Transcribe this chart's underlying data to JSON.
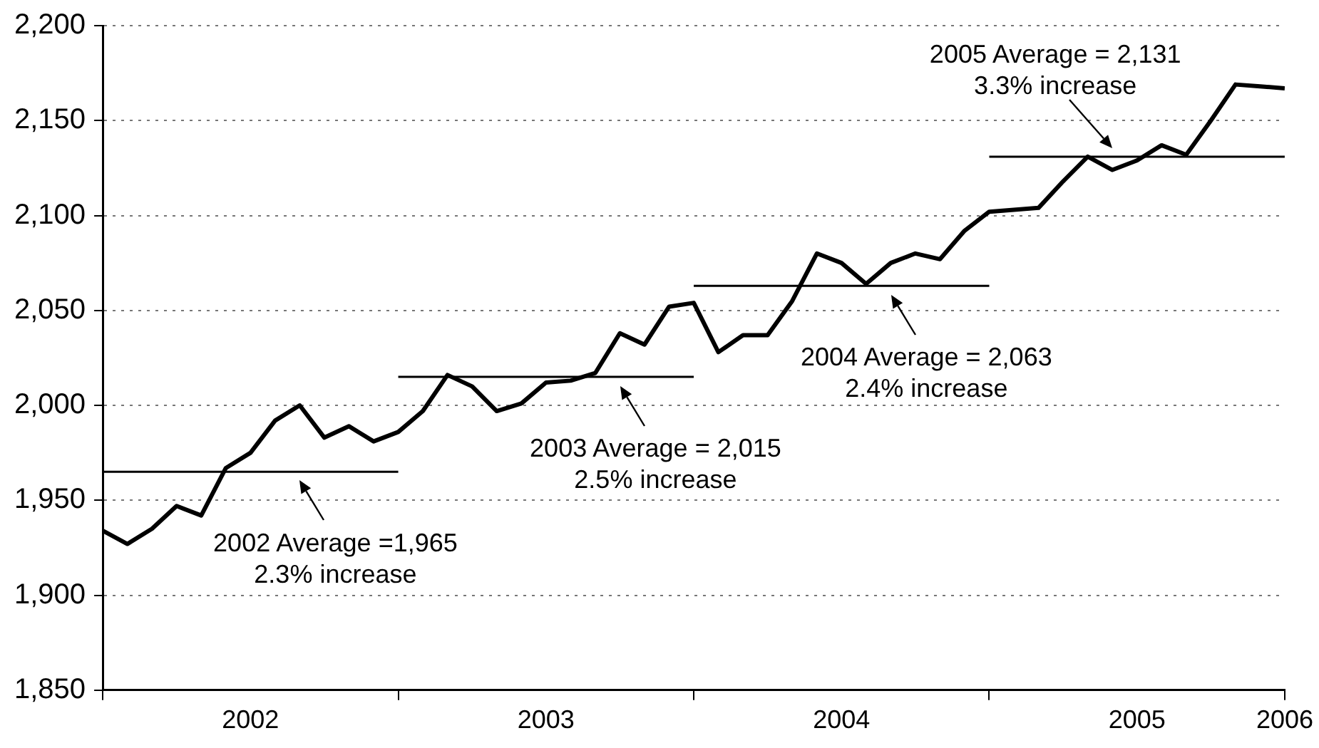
{
  "chart_data": {
    "type": "line",
    "x": [
      "2002-01",
      "2002-02",
      "2002-03",
      "2002-04",
      "2002-05",
      "2002-06",
      "2002-07",
      "2002-08",
      "2002-09",
      "2002-10",
      "2002-11",
      "2002-12",
      "2003-01",
      "2003-02",
      "2003-03",
      "2003-04",
      "2003-05",
      "2003-06",
      "2003-07",
      "2003-08",
      "2003-09",
      "2003-10",
      "2003-11",
      "2003-12",
      "2004-01",
      "2004-02",
      "2004-03",
      "2004-04",
      "2004-05",
      "2004-06",
      "2004-07",
      "2004-08",
      "2004-09",
      "2004-10",
      "2004-11",
      "2004-12",
      "2005-01",
      "2005-02",
      "2005-03",
      "2005-04",
      "2005-05",
      "2005-06",
      "2005-07",
      "2005-08",
      "2005-09",
      "2005-10",
      "2005-11",
      "2005-12",
      "2006-01"
    ],
    "series": [
      {
        "color": "#000000",
        "values": [
          1934,
          1927,
          1935,
          1947,
          1942,
          1967,
          1975,
          1992,
          2000,
          1983,
          1989,
          1981,
          1986,
          1997,
          2016,
          2010,
          1997,
          2001,
          2012,
          2013,
          2017,
          2038,
          2032,
          2052,
          2054,
          2028,
          2037,
          2037,
          2055,
          2080,
          2075,
          2064,
          2075,
          2080,
          2077,
          2092,
          2102,
          2103,
          2104,
          2118,
          2131,
          2124,
          2129,
          2137,
          2132,
          2150,
          2169,
          2168,
          2167
        ]
      },
      {
        "type": "line",
        "color": "#000000",
        "x": [
          "2002-01",
          "2003-01"
        ],
        "values": [
          1965,
          1965
        ]
      },
      {
        "type": "line",
        "color": "#000000",
        "x": [
          "2003-01",
          "2004-01"
        ],
        "values": [
          2015,
          2015
        ]
      },
      {
        "type": "line",
        "color": "#000000",
        "x": [
          "2004-01",
          "2005-01"
        ],
        "values": [
          2063,
          2063
        ]
      },
      {
        "type": "line",
        "color": "#000000",
        "x": [
          "2005-01",
          "2006-01"
        ],
        "values": [
          2131,
          2131
        ]
      }
    ],
    "xlim": [
      "2002-01",
      "2006-01"
    ],
    "xticks": [
      {
        "value": "2002-01",
        "label": null
      },
      {
        "value": "2002-07",
        "label": "2002"
      },
      {
        "value": "2003-01",
        "label": null
      },
      {
        "value": "2003-07",
        "label": "2003"
      },
      {
        "value": "2004-01",
        "label": null
      },
      {
        "value": "2004-07",
        "label": "2004"
      },
      {
        "value": "2005-01",
        "label": null
      },
      {
        "value": "2005-07",
        "label": "2005"
      },
      {
        "value": "2006-01",
        "label": "2006"
      }
    ],
    "ylim": [
      1850,
      2200
    ],
    "yticks": [
      {
        "value": 1850,
        "label": "1,850"
      },
      {
        "value": 1900,
        "label": "1,900"
      },
      {
        "value": 1950,
        "label": "1,950"
      },
      {
        "value": 2000,
        "label": "2,000"
      },
      {
        "value": 2050,
        "label": "2,050"
      },
      {
        "value": 2100,
        "label": "2,100"
      },
      {
        "value": 2150,
        "label": "2,150"
      },
      {
        "value": 2200,
        "label": "2,200"
      }
    ],
    "grid": "y",
    "legend": false,
    "marker": "none",
    "line_style": "solid",
    "annotations": [
      {
        "text": "2002 Average =1,965\n2.3% increase",
        "x": "2002-09",
        "y": 1965
      },
      {
        "text": "2003 Average = 2,015\n2.5% increase",
        "x": "2003-10",
        "y": 2015
      },
      {
        "text": "2004 Average = 2,063\n2.4% increase",
        "x": "2004-09",
        "y": 2063
      },
      {
        "text": "2005 Average = 2,131\n3.3% increase",
        "x": "2005-06",
        "y": 2131
      }
    ]
  }
}
